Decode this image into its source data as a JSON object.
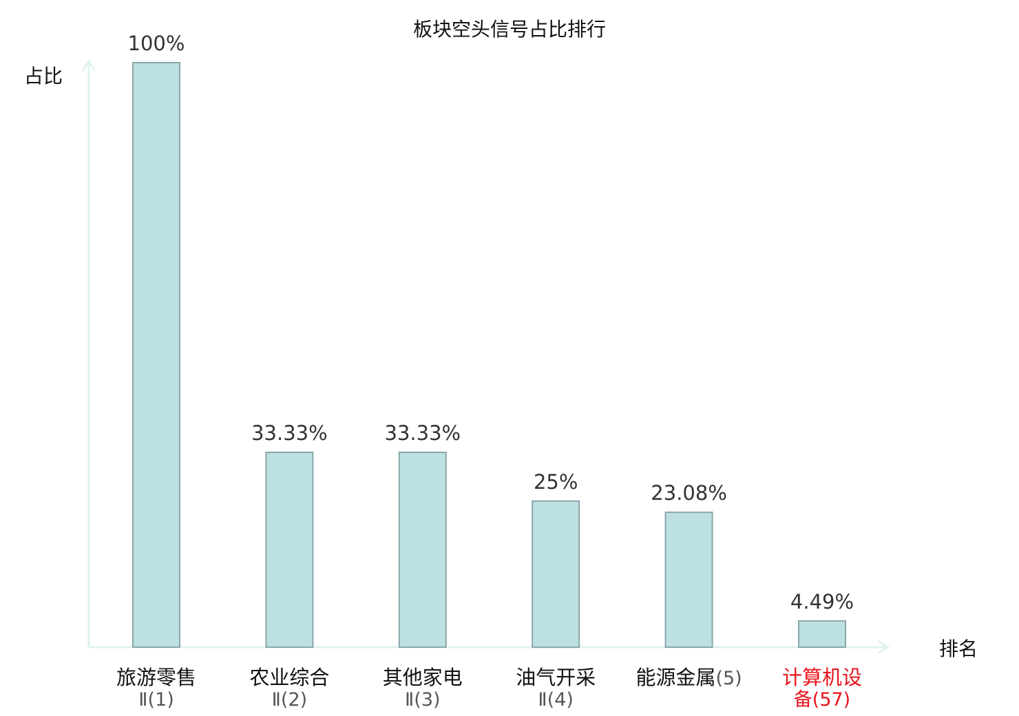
{
  "chart_data": {
    "type": "bar",
    "title": "板块空头信号占比排行",
    "ylabel": "占比",
    "xlabel": "排名",
    "ylim": [
      0,
      100
    ],
    "grid": false,
    "categories": [
      {
        "name": "旅游零售",
        "rank": "Ⅱ(1)"
      },
      {
        "name": "农业综合",
        "rank": "Ⅱ(2)"
      },
      {
        "name": "其他家电",
        "rank": "Ⅱ(3)"
      },
      {
        "name": "油气开采",
        "rank": "Ⅱ(4)"
      },
      {
        "name": "能源金属",
        "rank": "(5)"
      },
      {
        "name": "计算机设",
        "rank": "备(57)",
        "highlight": true
      }
    ],
    "values": [
      100,
      33.33,
      33.33,
      25,
      23.08,
      4.49
    ],
    "value_labels": [
      "100%",
      "33.33%",
      "33.33%",
      "25%",
      "23.08%",
      "4.49%"
    ]
  },
  "colors": {
    "bar_fill": "#bde0e3",
    "bar_stroke": "#8aa6a9",
    "axis": "#e0f3f1",
    "label_default": "#111111",
    "rank_default": "#555555",
    "highlight": "#e8141c"
  }
}
